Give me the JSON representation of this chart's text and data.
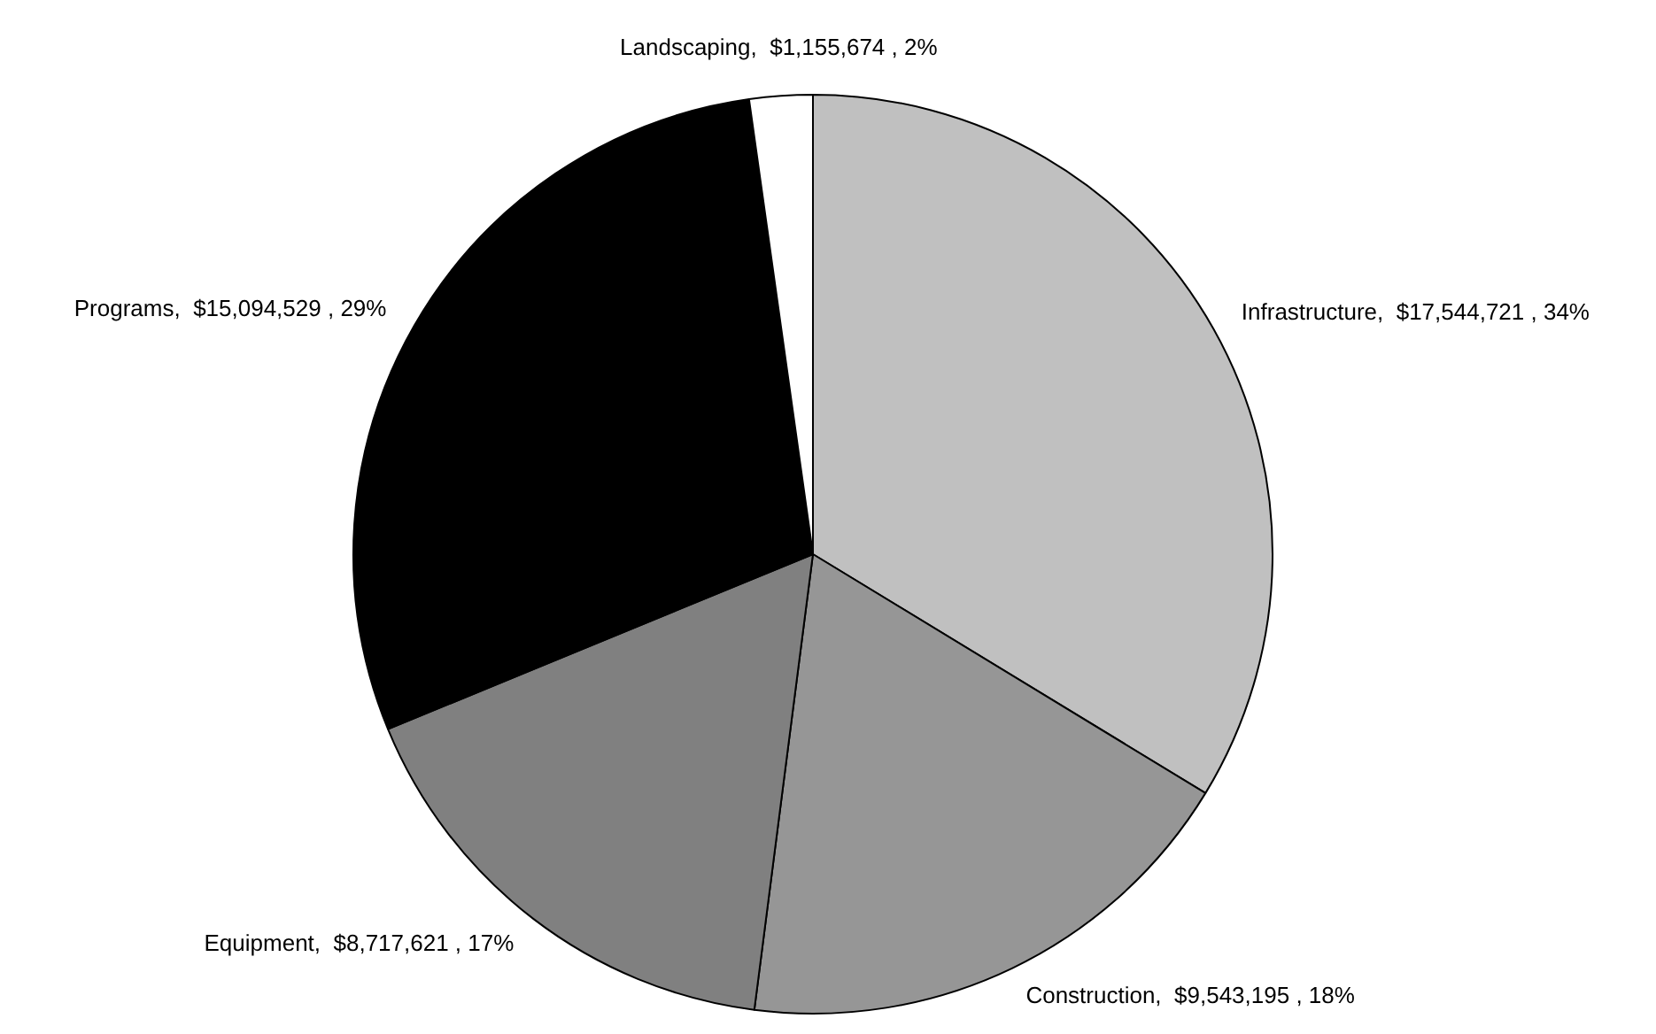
{
  "chart_data": {
    "type": "pie",
    "categories": [
      "Infrastructure",
      "Construction",
      "Equipment",
      "Programs",
      "Landscaping"
    ],
    "values": [
      17544721,
      9543195,
      8717621,
      15094529,
      1155674
    ],
    "colors": [
      "#c0c0c0",
      "#969696",
      "#808080",
      "#000000",
      "#ffffff"
    ],
    "value_labels": [
      "$17,544,721 , 34%",
      "$9,543,195 , 18%",
      "$8,717,621 , 17%",
      "$15,094,529 , 29%",
      "$1,155,674 , 2%"
    ],
    "legend": false
  }
}
